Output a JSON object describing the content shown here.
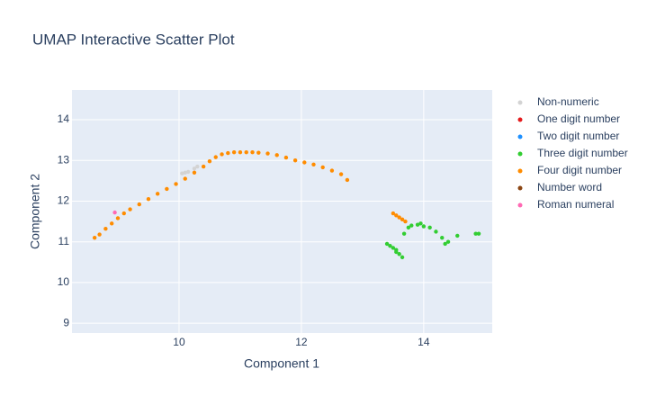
{
  "chart_data": {
    "type": "scatter",
    "title": "UMAP Interactive Scatter Plot",
    "x_label": "Component 1",
    "y_label": "Component 2",
    "xlim": [
      8.25,
      15.12
    ],
    "ylim": [
      8.76,
      14.73
    ],
    "xticks": [
      10,
      12,
      14
    ],
    "yticks": [
      9,
      10,
      11,
      12,
      13,
      14
    ],
    "grid": true,
    "series": [
      {
        "name": "Non-numeric",
        "color": "#d3d3d3",
        "x": [
          10.05,
          10.1,
          10.15,
          10.25,
          10.3
        ],
        "y": [
          12.68,
          12.7,
          12.72,
          12.8,
          12.85
        ]
      },
      {
        "name": "One digit number",
        "color": "#e41a1c",
        "x": [],
        "y": []
      },
      {
        "name": "Two digit number",
        "color": "#1e90ff",
        "x": [],
        "y": []
      },
      {
        "name": "Three digit number",
        "color": "#32cd32",
        "x": [
          13.4,
          13.45,
          13.5,
          13.55,
          13.6,
          13.65,
          13.68,
          13.75,
          13.8,
          13.9,
          13.95,
          14.0,
          14.1,
          14.2,
          14.3,
          14.35,
          14.4,
          14.55,
          14.85,
          14.9,
          13.55
        ],
        "y": [
          10.95,
          10.9,
          10.85,
          10.8,
          10.7,
          10.62,
          11.2,
          11.35,
          11.4,
          11.42,
          11.45,
          11.38,
          11.35,
          11.25,
          11.1,
          10.95,
          11.0,
          11.15,
          11.2,
          11.2,
          10.75
        ]
      },
      {
        "name": "Four digit number",
        "color": "#ff8c00",
        "x": [
          8.62,
          8.7,
          8.8,
          8.9,
          9.0,
          9.1,
          9.2,
          9.35,
          9.5,
          9.65,
          9.8,
          9.95,
          10.1,
          10.25,
          10.4,
          10.5,
          10.6,
          10.7,
          10.8,
          10.9,
          11.0,
          11.1,
          11.2,
          11.3,
          11.45,
          11.6,
          11.75,
          11.9,
          12.05,
          12.2,
          12.35,
          12.5,
          12.65,
          12.75,
          13.5,
          13.55,
          13.6,
          13.65,
          13.7
        ],
        "y": [
          11.1,
          11.18,
          11.32,
          11.45,
          11.58,
          11.7,
          11.8,
          11.92,
          12.05,
          12.18,
          12.3,
          12.42,
          12.55,
          12.7,
          12.85,
          12.98,
          13.08,
          13.15,
          13.18,
          13.2,
          13.2,
          13.2,
          13.2,
          13.19,
          13.17,
          13.13,
          13.07,
          13.0,
          12.95,
          12.9,
          12.83,
          12.75,
          12.66,
          12.52,
          11.7,
          11.65,
          11.6,
          11.55,
          11.5
        ]
      },
      {
        "name": "Number word",
        "color": "#8b4513",
        "x": [],
        "y": []
      },
      {
        "name": "Roman numeral",
        "color": "#ff69b4",
        "x": [
          8.95
        ],
        "y": [
          11.72
        ]
      }
    ]
  }
}
